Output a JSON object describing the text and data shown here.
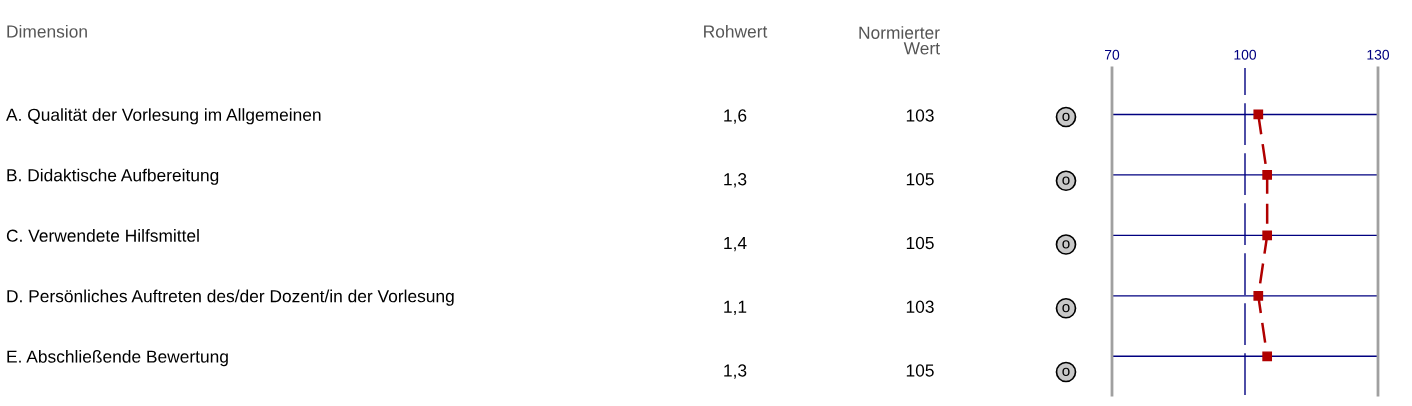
{
  "chart_data": {
    "type": "line",
    "orientation": "horizontal",
    "categories": [
      "A. Qualität der Vorlesung im Allgemeinen",
      "B. Didaktische Aufbereitung",
      "C. Verwendete Hilfsmittel",
      "D. Persönliches Auftreten des/der Dozent/in der Vorlesung",
      "E. Abschließende Bewertung"
    ],
    "series": [
      {
        "color": "#b00000",
        "axis": "x2",
        "values": [
          103,
          105,
          105,
          103,
          105
        ]
      }
    ],
    "marker": "square",
    "line_style": "dashed",
    "data_labels": true,
    "x2lim": [
      70,
      130
    ],
    "x2ticks": [
      70,
      100,
      130
    ],
    "ref_lines": [
      {
        "axis": "x2",
        "value": 100,
        "color": "#000080",
        "line_style": "dashed"
      }
    ],
    "grid": "y",
    "annotations": [
      "Dimension",
      "Rohwert",
      "Normierter Wert",
      "1,6",
      "1,3",
      "1,4",
      "1,1",
      "1,3",
      "o",
      "o",
      "o",
      "o",
      "o"
    ]
  }
}
